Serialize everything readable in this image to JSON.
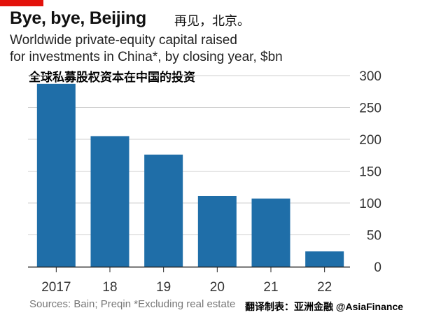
{
  "header": {
    "title": "Bye, bye, Beijing",
    "title_cn": "再见，北京。",
    "subtitle_line1": "Worldwide private-equity capital raised",
    "subtitle_line2": "for investments in China*, by closing year, $bn",
    "subtitle_cn": "全球私募股权资本在中国的投资"
  },
  "footer": {
    "source": "Sources: Bain; Preqin *Excluding real estate",
    "credit": "翻译制表：亚洲金融 @AsiaFinance"
  },
  "colors": {
    "bar": "#1f6ea8",
    "grid": "#cfcfcf",
    "accent": "#e3120b"
  },
  "chart_data": {
    "type": "bar",
    "categories": [
      "2017",
      "18",
      "19",
      "20",
      "21",
      "22"
    ],
    "values": [
      287,
      205,
      176,
      111,
      107,
      24
    ],
    "ylim": [
      0,
      300
    ],
    "yticks": [
      0,
      50,
      100,
      150,
      200,
      250,
      300
    ],
    "ytick_position": "right",
    "grid": true
  }
}
